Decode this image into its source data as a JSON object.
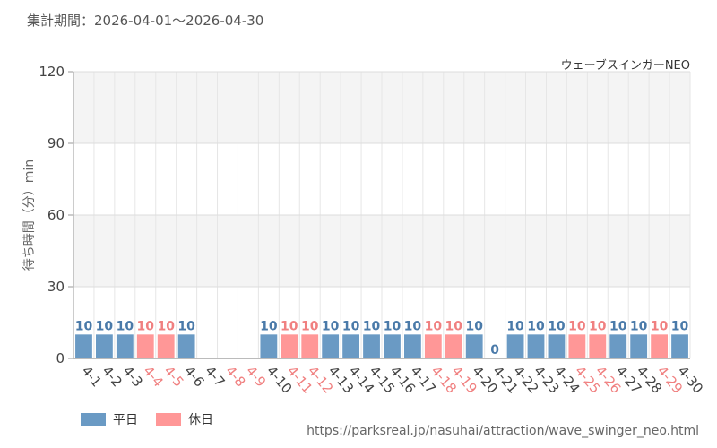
{
  "header": {
    "period": "集計期間：2026-04-01〜2026-04-30"
  },
  "colors": {
    "weekday": "#6a9ac4",
    "holiday": "#ff9797",
    "weekday_text": "#4a7aa9",
    "holiday_text": "#f08080"
  },
  "chart_data": {
    "type": "bar",
    "title": "ウェーブスインガーNEO",
    "ylabel": "待ち時間（分）min",
    "ylim": [
      0,
      120
    ],
    "yticks": [
      0,
      30,
      60,
      90,
      120
    ],
    "grid": true,
    "legend_position": "bottom-left",
    "categories": [
      "4-1",
      "4-2",
      "4-3",
      "4-4",
      "4-5",
      "4-6",
      "4-7",
      "4-8",
      "4-9",
      "4-10",
      "4-11",
      "4-12",
      "4-13",
      "4-14",
      "4-15",
      "4-16",
      "4-17",
      "4-18",
      "4-19",
      "4-20",
      "4-21",
      "4-22",
      "4-23",
      "4-24",
      "4-25",
      "4-26",
      "4-27",
      "4-28",
      "4-29",
      "4-30"
    ],
    "values": [
      10,
      10,
      10,
      10,
      10,
      10,
      null,
      null,
      null,
      10,
      10,
      10,
      10,
      10,
      10,
      10,
      10,
      10,
      10,
      10,
      0,
      10,
      10,
      10,
      10,
      10,
      10,
      10,
      10,
      10
    ],
    "day_type": [
      "weekday",
      "weekday",
      "weekday",
      "holiday",
      "holiday",
      "weekday",
      "weekday",
      "holiday",
      "holiday",
      "weekday",
      "holiday",
      "holiday",
      "weekday",
      "weekday",
      "weekday",
      "weekday",
      "weekday",
      "holiday",
      "holiday",
      "weekday",
      "weekday",
      "weekday",
      "weekday",
      "weekday",
      "holiday",
      "holiday",
      "weekday",
      "weekday",
      "holiday",
      "weekday"
    ],
    "series": [
      {
        "name": "平日",
        "key": "weekday"
      },
      {
        "name": "休日",
        "key": "holiday"
      }
    ]
  },
  "footer": {
    "source": "https://parksreal.jp/nasuhai/attraction/wave_swinger_neo.html"
  }
}
